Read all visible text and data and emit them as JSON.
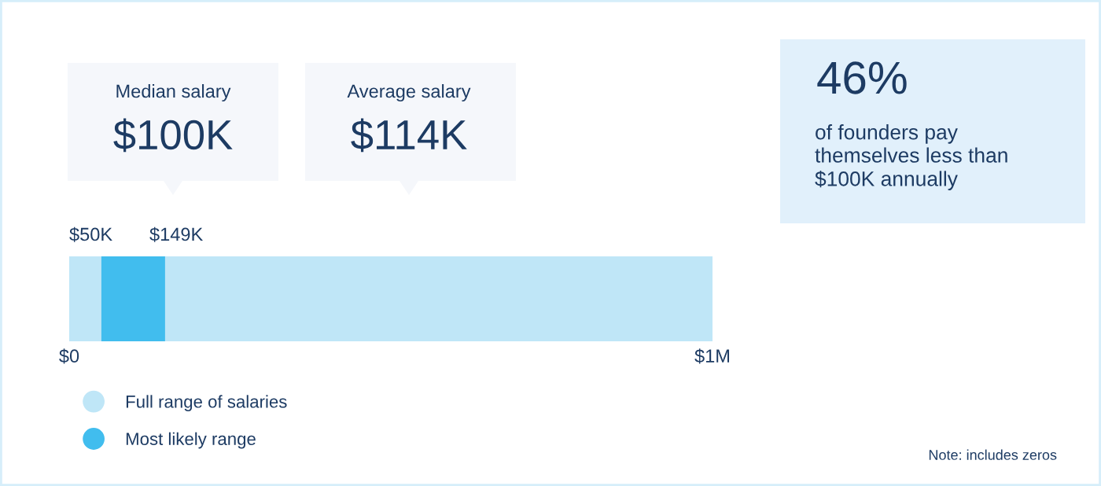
{
  "chart_data": {
    "type": "bar",
    "orientation": "horizontal",
    "categories": [
      null
    ],
    "series": [
      {
        "name": "Full range of salaries",
        "color": "#bfe6f7",
        "base": [
          0
        ],
        "values": [
          1
        ]
      },
      {
        "name": "Most likely range",
        "color": "#41bdee",
        "base": [
          0.05
        ],
        "values": [
          0.099
        ]
      }
    ],
    "xlim": [
      0,
      1
    ],
    "xticks": [
      {
        "value": 0,
        "label": "$0"
      },
      {
        "value": 1,
        "label": "$1M"
      }
    ],
    "grid": false,
    "legend": "bottom left",
    "annotations": [
      "$50K",
      "$149K",
      "Median salary",
      "$100K",
      "Average salary",
      "$114K",
      "46%",
      "of founders pay\nthemselves less than\n$100K annually",
      "Note: includes zeros"
    ]
  }
}
